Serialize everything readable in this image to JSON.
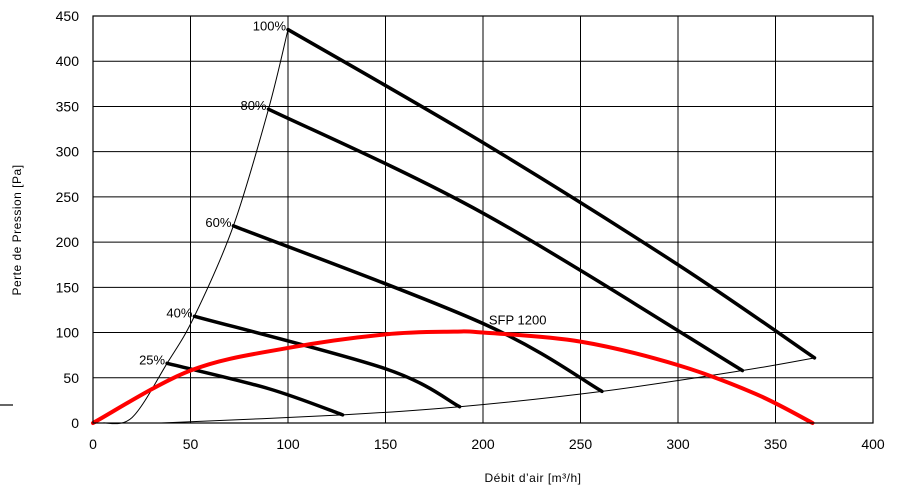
{
  "chart_data": {
    "type": "line",
    "title": "",
    "xlabel": "Débit d’air [m³/h]",
    "ylabel": "Perte de  Pression [Pa]",
    "xlim": [
      0,
      400
    ],
    "ylim": [
      0,
      450
    ],
    "x_ticks": [
      "0",
      "50",
      "100",
      "150",
      "200",
      "250",
      "300",
      "350",
      "400"
    ],
    "y_ticks": [
      "0",
      "50",
      "100",
      "150",
      "200",
      "250",
      "300",
      "350",
      "400",
      "450"
    ],
    "grid": true,
    "fan_curves": [
      {
        "label": "100%",
        "points": [
          [
            100,
            435
          ],
          [
            200,
            310
          ],
          [
            300,
            175
          ],
          [
            370,
            72
          ]
        ]
      },
      {
        "label": "80%",
        "points": [
          [
            90,
            347
          ],
          [
            200,
            232
          ],
          [
            333,
            58
          ]
        ]
      },
      {
        "label": "60%",
        "points": [
          [
            72,
            218
          ],
          [
            200,
            110
          ],
          [
            261,
            35
          ]
        ]
      },
      {
        "label": "40%",
        "points": [
          [
            52,
            118
          ],
          [
            150,
            60
          ],
          [
            188,
            18
          ]
        ]
      },
      {
        "label": "25%",
        "points": [
          [
            38,
            66
          ],
          [
            90,
            38
          ],
          [
            128,
            9
          ]
        ]
      }
    ],
    "boundary_curves": [
      {
        "name": "",
        "points": [
          [
            5,
            0
          ],
          [
            20,
            6
          ],
          [
            38,
            66
          ],
          [
            52,
            118
          ],
          [
            72,
            218
          ],
          [
            90,
            347
          ],
          [
            100,
            435
          ]
        ]
      },
      {
        "name": "",
        "points": [
          [
            35,
            0
          ],
          [
            128,
            9
          ],
          [
            188,
            18
          ],
          [
            261,
            35
          ],
          [
            333,
            58
          ],
          [
            370,
            72
          ]
        ]
      }
    ],
    "sfp_curve": {
      "label": "SFP 1200",
      "color": "#ff0000",
      "points": [
        [
          0,
          0
        ],
        [
          50,
          58
        ],
        [
          100,
          83
        ],
        [
          150,
          98
        ],
        [
          185,
          101
        ],
        [
          200,
          100
        ],
        [
          250,
          90
        ],
        [
          300,
          64
        ],
        [
          340,
          32
        ],
        [
          369,
          0
        ]
      ]
    }
  }
}
